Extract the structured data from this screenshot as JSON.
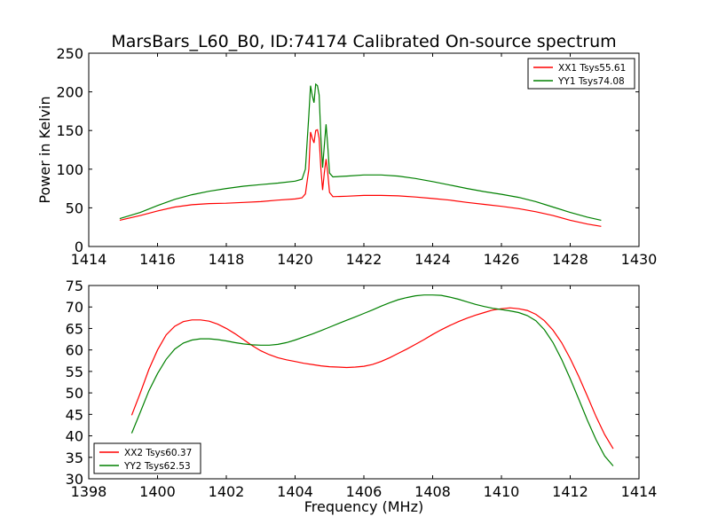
{
  "title": "MarsBars_L60_B0, ID:74174 Calibrated On-source spectrum",
  "chart_data": [
    {
      "type": "line",
      "ylabel": "Power in Kelvin",
      "xlabel": "",
      "xlim": [
        1414,
        1430
      ],
      "ylim": [
        0,
        250
      ],
      "xticks": [
        1414,
        1416,
        1418,
        1420,
        1422,
        1424,
        1426,
        1428,
        1430
      ],
      "yticks": [
        0,
        50,
        100,
        150,
        200,
        250
      ],
      "legend_position": "top-right",
      "series": [
        {
          "name": "XX1 Tsys55.61",
          "color": "#ff0000",
          "points": [
            [
              1414.9,
              34
            ],
            [
              1415.5,
              40
            ],
            [
              1416.0,
              46
            ],
            [
              1416.5,
              51
            ],
            [
              1417.0,
              54
            ],
            [
              1417.5,
              55.5
            ],
            [
              1418.0,
              56
            ],
            [
              1418.5,
              57
            ],
            [
              1419.0,
              58
            ],
            [
              1419.5,
              60
            ],
            [
              1420.0,
              61.5
            ],
            [
              1420.2,
              63
            ],
            [
              1420.3,
              68
            ],
            [
              1420.4,
              100
            ],
            [
              1420.45,
              148
            ],
            [
              1420.5,
              140
            ],
            [
              1420.55,
              134
            ],
            [
              1420.6,
              150
            ],
            [
              1420.65,
              151
            ],
            [
              1420.7,
              140
            ],
            [
              1420.75,
              100
            ],
            [
              1420.8,
              73
            ],
            [
              1420.85,
              95
            ],
            [
              1420.9,
              113
            ],
            [
              1420.95,
              95
            ],
            [
              1421.0,
              70
            ],
            [
              1421.1,
              64.5
            ],
            [
              1421.5,
              65
            ],
            [
              1422.0,
              66
            ],
            [
              1422.5,
              66
            ],
            [
              1423.0,
              65.5
            ],
            [
              1423.5,
              64
            ],
            [
              1424.0,
              62
            ],
            [
              1424.5,
              60
            ],
            [
              1425.0,
              57
            ],
            [
              1425.5,
              54.5
            ],
            [
              1426.0,
              52
            ],
            [
              1426.5,
              49
            ],
            [
              1427.0,
              45
            ],
            [
              1427.5,
              40
            ],
            [
              1428.0,
              34
            ],
            [
              1428.5,
              29
            ],
            [
              1428.9,
              26
            ]
          ]
        },
        {
          "name": "YY1 Tsys74.08",
          "color": "#008000",
          "points": [
            [
              1414.9,
              36
            ],
            [
              1415.5,
              44
            ],
            [
              1416.0,
              53
            ],
            [
              1416.5,
              61
            ],
            [
              1417.0,
              67
            ],
            [
              1417.5,
              71.5
            ],
            [
              1418.0,
              75
            ],
            [
              1418.5,
              78
            ],
            [
              1419.0,
              80
            ],
            [
              1419.5,
              82
            ],
            [
              1420.0,
              84.5
            ],
            [
              1420.2,
              87
            ],
            [
              1420.3,
              100
            ],
            [
              1420.4,
              170
            ],
            [
              1420.45,
              208
            ],
            [
              1420.5,
              195
            ],
            [
              1420.55,
              186
            ],
            [
              1420.6,
              210
            ],
            [
              1420.65,
              208
            ],
            [
              1420.7,
              196
            ],
            [
              1420.75,
              140
            ],
            [
              1420.8,
              102
            ],
            [
              1420.85,
              130
            ],
            [
              1420.9,
              158
            ],
            [
              1420.95,
              130
            ],
            [
              1421.0,
              95
            ],
            [
              1421.1,
              90
            ],
            [
              1421.5,
              91
            ],
            [
              1422.0,
              92.5
            ],
            [
              1422.5,
              92.5
            ],
            [
              1423.0,
              91
            ],
            [
              1423.5,
              88
            ],
            [
              1424.0,
              84
            ],
            [
              1424.5,
              79.5
            ],
            [
              1425.0,
              75
            ],
            [
              1425.5,
              71
            ],
            [
              1426.0,
              67.5
            ],
            [
              1426.5,
              63.5
            ],
            [
              1427.0,
              58
            ],
            [
              1427.5,
              51
            ],
            [
              1428.0,
              44
            ],
            [
              1428.5,
              38
            ],
            [
              1428.9,
              34
            ]
          ]
        }
      ]
    },
    {
      "type": "line",
      "ylabel": "",
      "xlabel": "Frequency (MHz)",
      "xlim": [
        1398,
        1414
      ],
      "ylim": [
        30,
        75
      ],
      "xticks": [
        1398,
        1400,
        1402,
        1404,
        1406,
        1408,
        1410,
        1412,
        1414
      ],
      "yticks": [
        30,
        35,
        40,
        45,
        50,
        55,
        60,
        65,
        70,
        75
      ],
      "legend_position": "bottom-left",
      "series": [
        {
          "name": "XX2 Tsys60.37",
          "color": "#ff0000",
          "points": [
            [
              1399.25,
              44.8
            ],
            [
              1399.5,
              50
            ],
            [
              1399.75,
              55.5
            ],
            [
              1400.0,
              60
            ],
            [
              1400.25,
              63.5
            ],
            [
              1400.5,
              65.5
            ],
            [
              1400.75,
              66.6
            ],
            [
              1401.0,
              67
            ],
            [
              1401.25,
              67
            ],
            [
              1401.5,
              66.7
            ],
            [
              1401.75,
              66
            ],
            [
              1402.0,
              65
            ],
            [
              1402.25,
              63.8
            ],
            [
              1402.5,
              62.4
            ],
            [
              1402.75,
              61
            ],
            [
              1403.0,
              59.8
            ],
            [
              1403.25,
              58.9
            ],
            [
              1403.5,
              58.2
            ],
            [
              1403.75,
              57.7
            ],
            [
              1404.0,
              57.3
            ],
            [
              1404.25,
              56.9
            ],
            [
              1404.5,
              56.6
            ],
            [
              1404.75,
              56.3
            ],
            [
              1405.0,
              56.1
            ],
            [
              1405.25,
              56
            ],
            [
              1405.5,
              55.9
            ],
            [
              1405.75,
              56
            ],
            [
              1406.0,
              56.2
            ],
            [
              1406.25,
              56.6
            ],
            [
              1406.5,
              57.3
            ],
            [
              1406.75,
              58.2
            ],
            [
              1407.0,
              59.2
            ],
            [
              1407.25,
              60.2
            ],
            [
              1407.5,
              61.3
            ],
            [
              1407.75,
              62.4
            ],
            [
              1408.0,
              63.6
            ],
            [
              1408.25,
              64.7
            ],
            [
              1408.5,
              65.7
            ],
            [
              1408.75,
              66.6
            ],
            [
              1409.0,
              67.4
            ],
            [
              1409.25,
              68.1
            ],
            [
              1409.5,
              68.7
            ],
            [
              1409.75,
              69.3
            ],
            [
              1410.0,
              69.6
            ],
            [
              1410.25,
              69.8
            ],
            [
              1410.5,
              69.6
            ],
            [
              1410.75,
              69.2
            ],
            [
              1411.0,
              68.3
            ],
            [
              1411.25,
              66.8
            ],
            [
              1411.5,
              64.6
            ],
            [
              1411.75,
              61.7
            ],
            [
              1412.0,
              58
            ],
            [
              1412.25,
              53.8
            ],
            [
              1412.5,
              49.2
            ],
            [
              1412.75,
              44.5
            ],
            [
              1413.0,
              40.3
            ],
            [
              1413.25,
              37
            ]
          ]
        },
        {
          "name": "YY2 Tsys62.53",
          "color": "#008000",
          "points": [
            [
              1399.25,
              40.6
            ],
            [
              1399.5,
              45.5
            ],
            [
              1399.75,
              50.5
            ],
            [
              1400.0,
              54.5
            ],
            [
              1400.25,
              57.8
            ],
            [
              1400.5,
              60.2
            ],
            [
              1400.75,
              61.6
            ],
            [
              1401.0,
              62.3
            ],
            [
              1401.25,
              62.6
            ],
            [
              1401.5,
              62.6
            ],
            [
              1401.75,
              62.4
            ],
            [
              1402.0,
              62.1
            ],
            [
              1402.25,
              61.7
            ],
            [
              1402.5,
              61.4
            ],
            [
              1402.75,
              61.2
            ],
            [
              1403.0,
              61.1
            ],
            [
              1403.25,
              61.1
            ],
            [
              1403.5,
              61.3
            ],
            [
              1403.75,
              61.7
            ],
            [
              1404.0,
              62.3
            ],
            [
              1404.25,
              63
            ],
            [
              1404.5,
              63.7
            ],
            [
              1404.75,
              64.5
            ],
            [
              1405.0,
              65.3
            ],
            [
              1405.25,
              66.1
            ],
            [
              1405.5,
              66.9
            ],
            [
              1405.75,
              67.7
            ],
            [
              1406.0,
              68.5
            ],
            [
              1406.25,
              69.3
            ],
            [
              1406.5,
              70.2
            ],
            [
              1406.75,
              71
            ],
            [
              1407.0,
              71.7
            ],
            [
              1407.25,
              72.2
            ],
            [
              1407.5,
              72.6
            ],
            [
              1407.75,
              72.8
            ],
            [
              1408.0,
              72.8
            ],
            [
              1408.25,
              72.7
            ],
            [
              1408.5,
              72.3
            ],
            [
              1408.75,
              71.8
            ],
            [
              1409.0,
              71.2
            ],
            [
              1409.25,
              70.6
            ],
            [
              1409.5,
              70.1
            ],
            [
              1409.75,
              69.7
            ],
            [
              1410.0,
              69.4
            ],
            [
              1410.25,
              69.1
            ],
            [
              1410.5,
              68.7
            ],
            [
              1410.75,
              68
            ],
            [
              1411.0,
              66.8
            ],
            [
              1411.25,
              64.7
            ],
            [
              1411.5,
              61.7
            ],
            [
              1411.75,
              57.8
            ],
            [
              1412.0,
              53.3
            ],
            [
              1412.25,
              48.5
            ],
            [
              1412.5,
              43.6
            ],
            [
              1412.75,
              39.1
            ],
            [
              1413.0,
              35.3
            ],
            [
              1413.25,
              33
            ]
          ]
        }
      ]
    }
  ]
}
